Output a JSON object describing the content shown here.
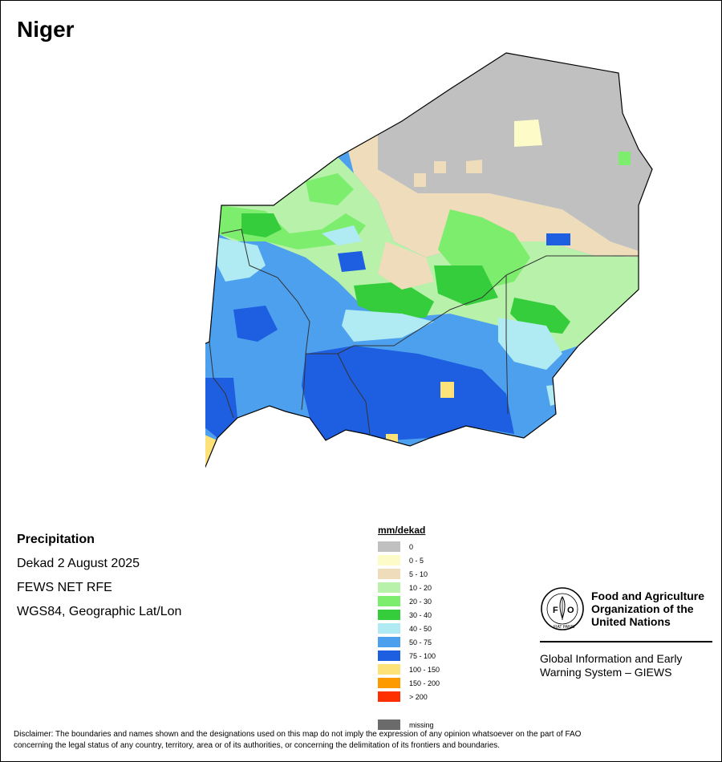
{
  "title": "Niger",
  "info": {
    "variable": "Precipitation",
    "period": "Dekad 2 August 2025",
    "source": "FEWS NET RFE",
    "projection": "WGS84, Geographic Lat/Lon"
  },
  "legend": {
    "title": "mm/dekad",
    "classes": [
      {
        "label": "0",
        "color": "#c0c0c0"
      },
      {
        "label": "0 - 5",
        "color": "#fdfcc8"
      },
      {
        "label": "5 - 10",
        "color": "#eedcba"
      },
      {
        "label": "10 - 20",
        "color": "#b8f2aa"
      },
      {
        "label": "20 - 30",
        "color": "#7ded6d"
      },
      {
        "label": "30 - 40",
        "color": "#35cd3b"
      },
      {
        "label": "40 - 50",
        "color": "#b0eaf2"
      },
      {
        "label": "50 - 75",
        "color": "#4ca0ee"
      },
      {
        "label": "75 - 100",
        "color": "#1e5ee0"
      },
      {
        "label": "100 - 150",
        "color": "#fde27a"
      },
      {
        "label": "150 - 200",
        "color": "#fd9a00"
      },
      {
        "label": "> 200",
        "color": "#fe2f00"
      }
    ],
    "missing": {
      "label": "missing",
      "color": "#6b6b6b"
    }
  },
  "fao": {
    "logo_letters": "FAO",
    "logo_motto": "FIAT PANIS",
    "line1": "Food and Agriculture",
    "line2": "Organization of the",
    "line3": "United Nations"
  },
  "giews": {
    "line1": "Global Information and Early",
    "line2": "Warning System – GIEWS"
  },
  "disclaimer": {
    "line1": "Disclaimer: The boundaries and names shown and the designations used on this map do not imply the expression of any opinion whatsoever on the part of FAO",
    "line2": "concerning the legal status of any country, territory, area or of its authorities, or concerning the delimitation of its frontiers and boundaries."
  }
}
